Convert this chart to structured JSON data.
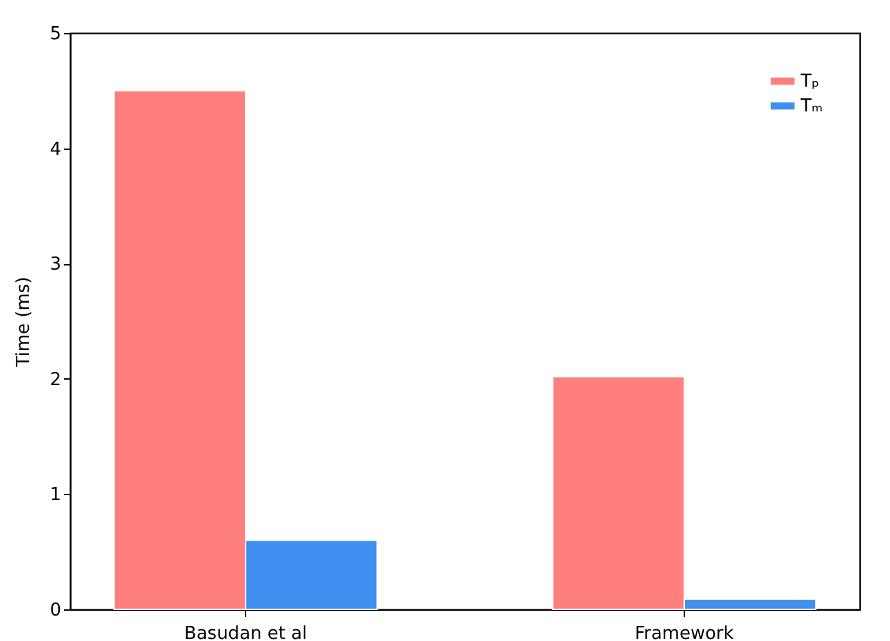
{
  "chart_data": {
    "type": "bar",
    "ylabel": "Time (ms)",
    "categories": [
      "Basudan et al",
      "Framework"
    ],
    "series": [
      {
        "name": "Tₚ",
        "color": "#ff7f7f",
        "values": [
          4.5,
          2.02
        ]
      },
      {
        "name": "Tₘ",
        "color": "#418ff0",
        "values": [
          0.6,
          0.09
        ]
      }
    ],
    "ylim": [
      0,
      5
    ],
    "yticks": [
      0,
      1,
      2,
      3,
      4,
      5
    ],
    "grid": false,
    "legend": "top right"
  }
}
